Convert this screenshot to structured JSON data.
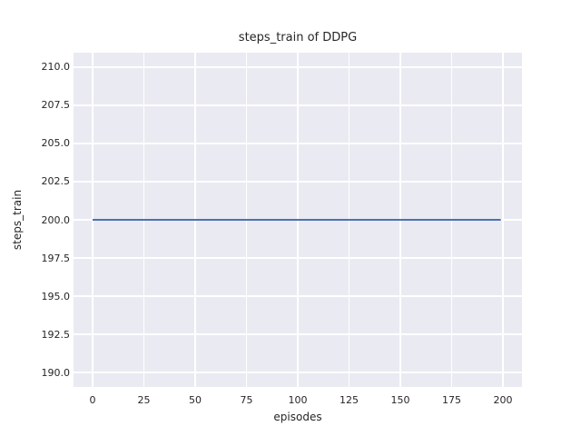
{
  "chart_data": {
    "type": "line",
    "title": "steps_train of DDPG",
    "xlabel": "episodes",
    "ylabel": "steps_train",
    "x_tick_labels": [
      "0",
      "25",
      "50",
      "75",
      "100",
      "125",
      "150",
      "175",
      "200"
    ],
    "x_ticks": [
      0,
      25,
      50,
      75,
      100,
      125,
      150,
      175,
      200
    ],
    "y_tick_labels": [
      "190.0",
      "192.5",
      "195.0",
      "197.5",
      "200.0",
      "202.5",
      "205.0",
      "207.5",
      "210.0"
    ],
    "y_ticks": [
      190.0,
      192.5,
      195.0,
      197.5,
      200.0,
      202.5,
      205.0,
      207.5,
      210.0
    ],
    "xlim": [
      -9.3,
      209.3
    ],
    "ylim": [
      189.05,
      210.95
    ],
    "grid": true,
    "legend": null,
    "series": [
      {
        "name": "steps_train",
        "color": "#4c72b0",
        "x": [
          0,
          199
        ],
        "y": [
          200,
          200
        ],
        "description": "constant value 200 across all episodes 0-199"
      }
    ],
    "colors": {
      "figure_background": "#ffffff",
      "axes_background": "#eaeaf2",
      "gridline": "#ffffff",
      "text": "#262626",
      "line": "#4c72b0"
    }
  }
}
